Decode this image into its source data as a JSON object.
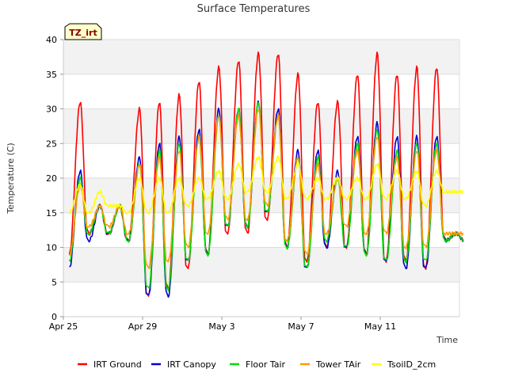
{
  "chart_data": {
    "type": "line",
    "title": "Surface Temperatures",
    "badge": "TZ_irt",
    "xlabel": "Time",
    "ylabel": "Temperature (C)",
    "xlim": [
      "2024-04-25",
      "2024-05-15"
    ],
    "ylim": [
      0,
      40
    ],
    "x_ticks": [
      {
        "value": "2024-04-25",
        "label": "Apr 25"
      },
      {
        "value": "2024-04-29",
        "label": "Apr 29"
      },
      {
        "value": "2024-05-03",
        "label": "May 3"
      },
      {
        "value": "2024-05-07",
        "label": "May 7"
      },
      {
        "value": "2024-05-11",
        "label": "May 11"
      }
    ],
    "y_ticks": [
      0,
      5,
      10,
      15,
      20,
      25,
      30,
      35,
      40
    ],
    "grid": true,
    "background_bands": "alternating light grey",
    "legend_position": "bottom",
    "x_dates": [
      "2024-04-25",
      "2024-04-26",
      "2024-04-27",
      "2024-04-28",
      "2024-04-29",
      "2024-04-30",
      "2024-05-01",
      "2024-05-02",
      "2024-05-03",
      "2024-05-04",
      "2024-05-05",
      "2024-05-06",
      "2024-05-07",
      "2024-05-08",
      "2024-05-09",
      "2024-05-10",
      "2024-05-11",
      "2024-05-12",
      "2024-05-13",
      "2024-05-14"
    ],
    "series": [
      {
        "name": "IRT Ground",
        "color": "#ff0000",
        "daily_min": [
          9,
          12,
          12,
          11,
          3,
          4,
          7,
          9,
          12,
          12,
          14,
          10,
          8,
          10,
          10,
          9,
          8,
          8,
          7,
          11
        ],
        "daily_max": [
          31,
          16,
          16,
          30,
          31,
          32,
          34,
          36,
          37,
          38,
          38,
          35,
          31,
          31,
          35,
          38,
          35,
          36,
          36,
          12
        ]
      },
      {
        "name": "IRT Canopy",
        "color": "#0000cc",
        "daily_min": [
          7,
          11,
          12,
          11,
          3,
          3,
          8,
          9,
          13,
          13,
          15,
          10,
          7,
          10,
          10,
          9,
          8,
          7,
          7,
          11
        ],
        "daily_max": [
          21,
          16,
          16,
          23,
          25,
          26,
          27,
          30,
          30,
          31,
          30,
          24,
          24,
          21,
          26,
          28,
          26,
          26,
          26,
          12
        ]
      },
      {
        "name": "Floor Tair",
        "color": "#00dd00",
        "daily_min": [
          8,
          12,
          12,
          11,
          4,
          4,
          8,
          9,
          13,
          13,
          15,
          10,
          7,
          11,
          10,
          9,
          8,
          8,
          8,
          11
        ],
        "daily_max": [
          20,
          16,
          16,
          22,
          24,
          25,
          26,
          29,
          30,
          31,
          29,
          23,
          23,
          20,
          25,
          27,
          24,
          25,
          25,
          12
        ]
      },
      {
        "name": "Tower TAir",
        "color": "#ff9900",
        "daily_min": [
          9,
          13,
          13,
          12,
          7,
          8,
          10,
          12,
          14,
          14,
          16,
          11,
          9,
          12,
          13,
          12,
          12,
          10,
          10,
          12
        ],
        "daily_max": [
          19,
          16,
          16,
          22,
          23,
          24,
          26,
          29,
          29,
          30,
          29,
          23,
          22,
          20,
          24,
          26,
          23,
          24,
          24,
          12
        ]
      },
      {
        "name": "TsoilD_2cm",
        "color": "#ffff00",
        "daily_min": [
          15,
          15,
          16,
          15,
          15,
          15,
          16,
          17,
          17,
          18,
          18,
          17,
          17,
          17,
          17,
          17,
          17,
          17,
          16,
          18
        ],
        "daily_max": [
          19,
          18,
          16,
          20,
          20,
          20,
          20,
          21,
          22,
          23,
          23,
          22,
          20,
          20,
          20,
          22,
          21,
          21,
          21,
          18
        ]
      }
    ]
  }
}
